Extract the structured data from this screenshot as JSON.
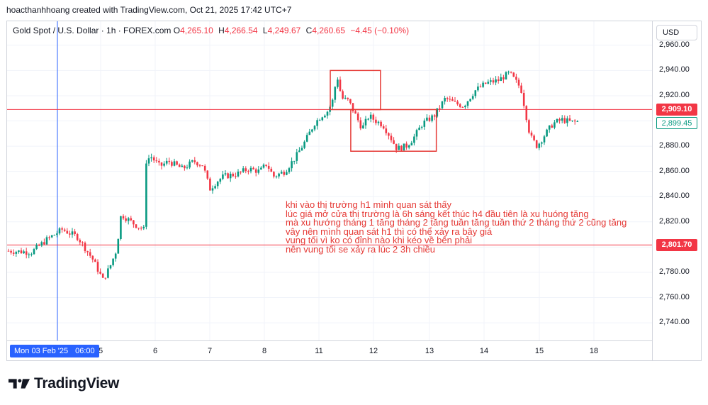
{
  "credit": "hoacthanhhoang created with TradingView.com, Oct 21, 2025 17:42 UTC+7",
  "legend": {
    "symbol": "Gold Spot / U.S. Dollar · 1h · FOREX.com",
    "o_label": "O",
    "o_value": "4,265.10",
    "h_label": "H",
    "h_value": "4,266.54",
    "l_label": "L",
    "l_value": "4,249.67",
    "c_label": "C",
    "c_value": "4,260.65",
    "change": "−4.45 (−0.10%)"
  },
  "currency": "USD",
  "brand": {
    "name": "TradingView",
    "logo_icon": "tradingview-logo-icon"
  },
  "annotation_lines": [
    "khi vào thị trường h1 mình quan sát thấy",
    "lúc giá mở cửa thị trường là 6h sáng  kết thúc h4 đầu tiên là xu huóng tăng",
    "mà  xu hướng tháng 1 tăng tháng 2 tăng tuần tăng tuần thứ 2 tháng thứ 2 cũng tăng",
    "vây nên mình quan sát h1 thì có thể xảy ra bây giá",
    "vung tối vì ko có đỉnh nào khi kéo về bên phải",
    "nên vung tối se xảy ra lúc 2 3h chiều"
  ],
  "chart_data": {
    "type": "candlestick",
    "timeframe": "1h",
    "y_ticks": [
      "2,960.00",
      "2,940.00",
      "2,920.00",
      "2,900.00",
      "2,880.00",
      "2,860.00",
      "2,840.00",
      "2,820.00",
      "2,800.00",
      "2,780.00",
      "2,760.00",
      "2,740.00"
    ],
    "y_tick_values": [
      2960,
      2940,
      2920,
      2900,
      2880,
      2860,
      2840,
      2820,
      2800,
      2780,
      2760,
      2740
    ],
    "ylim": [
      2726,
      2979
    ],
    "x_ticks": [
      {
        "label": "5",
        "day": 5
      },
      {
        "label": "6",
        "day": 6
      },
      {
        "label": "7",
        "day": 7
      },
      {
        "label": "8",
        "day": 8
      },
      {
        "label": "11",
        "day": 11
      },
      {
        "label": "12",
        "day": 12
      },
      {
        "label": "13",
        "day": 13
      },
      {
        "label": "14",
        "day": 14
      },
      {
        "label": "15",
        "day": 15
      },
      {
        "label": "18",
        "day": 18
      }
    ],
    "crosshair_label": {
      "date": "Mon 03 Feb '25",
      "time": "06:00"
    },
    "price_lines": [
      {
        "value": 2909.1,
        "label": "2,909.10",
        "color": "#f23645"
      },
      {
        "value": 2801.7,
        "label": "2,801.70",
        "color": "#f23645"
      }
    ],
    "last_price": {
      "value": 2899.45,
      "label": "2,899.45",
      "color": "#089981"
    },
    "colors": {
      "up": "#089981",
      "down": "#f23645",
      "annotation": "#e53935",
      "crosshair": "#2962ff"
    },
    "boxes": [
      {
        "start": "11 05:00",
        "end": "12 03:00",
        "top": 2940,
        "bottom": 2909
      },
      {
        "start": "11 14:00",
        "end": "13 03:00",
        "top": 2909,
        "bottom": 2876
      }
    ],
    "close_path": [
      [
        "3 00:00",
        2797
      ],
      [
        "3 06:00",
        2796
      ],
      [
        "3 10:00",
        2806
      ],
      [
        "3 14:00",
        2814
      ],
      [
        "3 18:00",
        2808
      ],
      [
        "3 22:00",
        2790
      ],
      [
        "4 01:00",
        2774
      ],
      [
        "4 04:00",
        2784
      ],
      [
        "4 07:00",
        2798
      ],
      [
        "4 09:00",
        2826
      ],
      [
        "4 12:00",
        2822
      ],
      [
        "4 15:00",
        2818
      ],
      [
        "4 19:00",
        2814
      ],
      [
        "5 00:00",
        2824
      ],
      [
        "5 04:00",
        2840
      ],
      [
        "5 09:00",
        2842
      ],
      [
        "5 14:00",
        2852
      ],
      [
        "5 18:00",
        2864
      ],
      [
        "5 22:00",
        2872
      ],
      [
        "6 02:00",
        2864
      ],
      [
        "6 06:00",
        2868
      ],
      [
        "6 12:00",
        2862
      ],
      [
        "6 17:00",
        2868
      ],
      [
        "6 21:00",
        2865
      ],
      [
        "7 00:00",
        2846
      ],
      [
        "7 03:00",
        2852
      ],
      [
        "7 06:00",
        2856
      ],
      [
        "7 12:00",
        2858
      ],
      [
        "7 17:00",
        2862
      ],
      [
        "7 22:00",
        2860
      ],
      [
        "8 01:00",
        2866
      ],
      [
        "8 04:00",
        2856
      ],
      [
        "8 09:00",
        2860
      ],
      [
        "8 14:00",
        2872
      ],
      [
        "8 18:00",
        2884
      ],
      [
        "8 22:00",
        2898
      ],
      [
        "11 01:00",
        2904
      ],
      [
        "11 04:00",
        2908
      ],
      [
        "11 06:00",
        2916
      ],
      [
        "11 08:00",
        2936
      ],
      [
        "11 10:00",
        2918
      ],
      [
        "11 13:00",
        2916
      ],
      [
        "11 16:00",
        2905
      ],
      [
        "11 19:00",
        2894
      ],
      [
        "11 22:00",
        2904
      ],
      [
        "12 01:00",
        2900
      ],
      [
        "12 04:00",
        2897
      ],
      [
        "12 07:00",
        2888
      ],
      [
        "12 10:00",
        2878
      ],
      [
        "12 14:00",
        2880
      ],
      [
        "12 17:00",
        2886
      ],
      [
        "12 21:00",
        2898
      ],
      [
        "13 02:00",
        2904
      ],
      [
        "13 07:00",
        2918
      ],
      [
        "13 11:00",
        2914
      ],
      [
        "13 15:00",
        2912
      ],
      [
        "13 20:00",
        2924
      ],
      [
        "14 01:00",
        2930
      ],
      [
        "14 06:00",
        2932
      ],
      [
        "14 11:00",
        2938
      ],
      [
        "14 16:00",
        2926
      ],
      [
        "14 20:00",
        2888
      ],
      [
        "14 23:00",
        2880
      ],
      [
        "15 02:00",
        2888
      ],
      [
        "15 06:00",
        2898
      ],
      [
        "15 10:00",
        2901
      ],
      [
        "15 14:00",
        2899
      ],
      [
        "15 17:00",
        2899.45
      ]
    ]
  }
}
